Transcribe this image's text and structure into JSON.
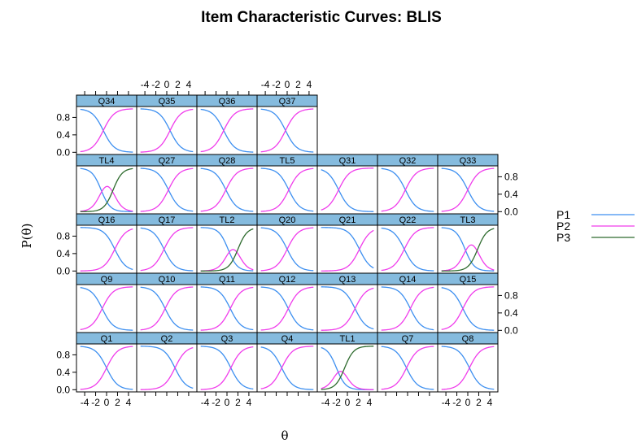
{
  "chart_data": {
    "type": "line",
    "title": "Item Characteristic Curves: BLIS",
    "xlabel": "θ",
    "ylabel": "P(θ)",
    "xlim": [
      -5.5,
      5.5
    ],
    "ylim": [
      -0.05,
      1.05
    ],
    "x_ticks": [
      -4,
      -2,
      0,
      2,
      4
    ],
    "x_tick_labels": [
      "-4",
      "-2",
      "0",
      "2",
      "4"
    ],
    "y_ticks": [
      0.0,
      0.4,
      0.8
    ],
    "y_tick_labels": [
      "0.0",
      "0.4",
      "0.8"
    ],
    "series": [
      {
        "name": "P1",
        "color": "#3D8FF0"
      },
      {
        "name": "P2",
        "color": "#F03CEB"
      },
      {
        "name": "P3",
        "color": "#2E6B2E"
      }
    ],
    "legend_position": "right",
    "panels": [
      {
        "label": "Q1",
        "b": 0.0,
        "a": 1.0
      },
      {
        "label": "Q2",
        "b": 1.5,
        "a": 1.0
      },
      {
        "label": "Q3",
        "b": 0.7,
        "a": 1.0
      },
      {
        "label": "Q4",
        "b": -1.0,
        "a": 1.0
      },
      {
        "label": "TL1",
        "b": [
          -2.0,
          -0.5
        ],
        "a": 1.2
      },
      {
        "label": "Q7",
        "b": -0.2,
        "a": 1.0
      },
      {
        "label": "Q8",
        "b": 0.3,
        "a": 1.0
      },
      {
        "label": "Q9",
        "b": -0.8,
        "a": 1.0
      },
      {
        "label": "Q10",
        "b": -0.3,
        "a": 1.0
      },
      {
        "label": "Q11",
        "b": 0.6,
        "a": 1.0
      },
      {
        "label": "Q12",
        "b": 0.2,
        "a": 1.0
      },
      {
        "label": "Q13",
        "b": 1.4,
        "a": 1.0
      },
      {
        "label": "Q14",
        "b": 0.5,
        "a": 1.0
      },
      {
        "label": "Q15",
        "b": -0.9,
        "a": 1.0
      },
      {
        "label": "Q16",
        "b": 1.5,
        "a": 1.0
      },
      {
        "label": "Q17",
        "b": -0.5,
        "a": 1.0
      },
      {
        "label": "TL2",
        "b": [
          0.2,
          2.0
        ],
        "a": 1.2
      },
      {
        "label": "Q20",
        "b": 0.0,
        "a": 1.0
      },
      {
        "label": "Q21",
        "b": 2.2,
        "a": 1.0
      },
      {
        "label": "Q22",
        "b": -0.6,
        "a": 1.0
      },
      {
        "label": "TL3",
        "b": [
          -0.5,
          1.8
        ],
        "a": 1.2
      },
      {
        "label": "TL4",
        "b": [
          -1.0,
          1.2
        ],
        "a": 1.2
      },
      {
        "label": "Q27",
        "b": 0.3,
        "a": 1.0
      },
      {
        "label": "Q28",
        "b": -0.2,
        "a": 1.0
      },
      {
        "label": "TL5",
        "b": 0.3,
        "a": 1.0
      },
      {
        "label": "Q31",
        "b": -1.6,
        "a": 1.0
      },
      {
        "label": "Q32",
        "b": -0.4,
        "a": 1.0
      },
      {
        "label": "Q33",
        "b": 0.0,
        "a": 1.0
      },
      {
        "label": "Q34",
        "b": -0.6,
        "a": 1.0
      },
      {
        "label": "Q35",
        "b": 0.6,
        "a": 1.0
      },
      {
        "label": "Q36",
        "b": -0.6,
        "a": 1.0
      },
      {
        "label": "Q37",
        "b": -0.3,
        "a": 1.0
      }
    ]
  }
}
